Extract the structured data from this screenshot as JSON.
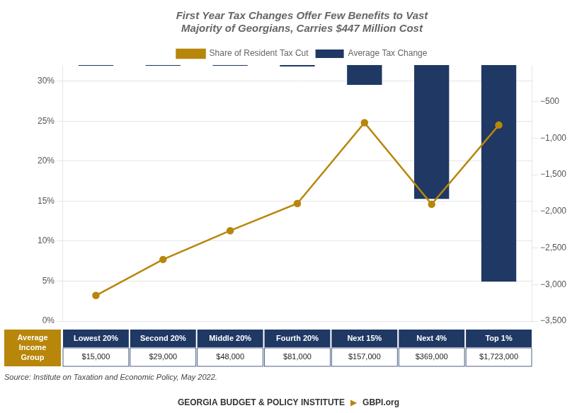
{
  "chart_data": {
    "type": "bar",
    "title": "First Year Tax Changes Offer Few Benefits to Vast\nMajority of Georgians, Carries $447 Million Cost",
    "categories": [
      "Lowest 20%",
      "Second 20%",
      "Middle 20%",
      "Fourth 20%",
      "Next 15%",
      "Next 4%",
      "Top 1%"
    ],
    "series": [
      {
        "name": "Average Tax Change",
        "type": "bar",
        "color": "#1F3864",
        "axis": "y2",
        "values": [
          -10,
          -10,
          -10,
          -20,
          -270,
          -1830,
          -2960
        ]
      },
      {
        "name": "Share of Resident Tax Cut",
        "type": "line",
        "color": "#B8860B",
        "marker": "o",
        "values": [
          3.2,
          7.7,
          11.3,
          14.7,
          24.8,
          14.6,
          24.5
        ]
      }
    ],
    "ylim": [
      0,
      32
    ],
    "yticks": [
      {
        "value": 0,
        "label": "0%"
      },
      {
        "value": 5,
        "label": "5%"
      },
      {
        "value": 10,
        "label": "10%"
      },
      {
        "value": 15,
        "label": "15%"
      },
      {
        "value": 20,
        "label": "20%"
      },
      {
        "value": 25,
        "label": "25%"
      },
      {
        "value": 30,
        "label": "30%"
      }
    ],
    "y2lim": [
      -3500,
      0
    ],
    "y2ticks": [
      {
        "value": -500,
        "label": "−500"
      },
      {
        "value": -1000,
        "label": "−1,000"
      },
      {
        "value": -1500,
        "label": "−1,500"
      },
      {
        "value": -2000,
        "label": "−2,000"
      },
      {
        "value": -2500,
        "label": "−2,500"
      },
      {
        "value": -3000,
        "label": "−3,000"
      },
      {
        "value": -3500,
        "label": "−3,500"
      }
    ],
    "grid": true,
    "legend": "top",
    "tick_labels": "y",
    "table_label": "Average\nIncome\nGroup",
    "avg_incomes": [
      "$15,000",
      "$29,000",
      "$48,000",
      "$81,000",
      "$157,000",
      "$369,000",
      "$1,723,000"
    ],
    "source": "Source: Institute on Taxation and Economic Policy, May 2022.",
    "footer": [
      "GEORGIA BUDGET & POLICY INSTITUTE",
      "▶",
      "GBPI.org"
    ]
  }
}
